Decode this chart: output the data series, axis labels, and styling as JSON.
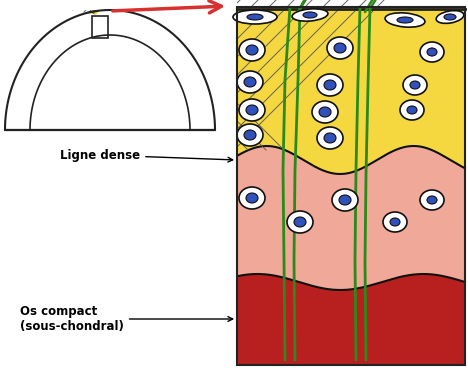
{
  "bg_color": "#ffffff",
  "left_panel": {
    "cartilage_outer_color": "#f0d830",
    "crosshatch_color": "#555555",
    "arrow_color": "#d93030",
    "box_color": "#222222",
    "arch_edge_color": "#222222"
  },
  "right_panel": {
    "top_layer_color": "#f5d840",
    "middle_layer_color": "#f0a898",
    "bottom_layer_color": "#b82020",
    "border_color": "#111111",
    "fiber_color": "#2a8a1a",
    "cell_outline_color": "#111111",
    "cell_fill_color": "#ffffff",
    "cell_nucleus_color": "#3050bb"
  },
  "labels": {
    "ligne_dense": "Ligne dense",
    "os_compact": "Os compact\n(sous-chondral)"
  }
}
